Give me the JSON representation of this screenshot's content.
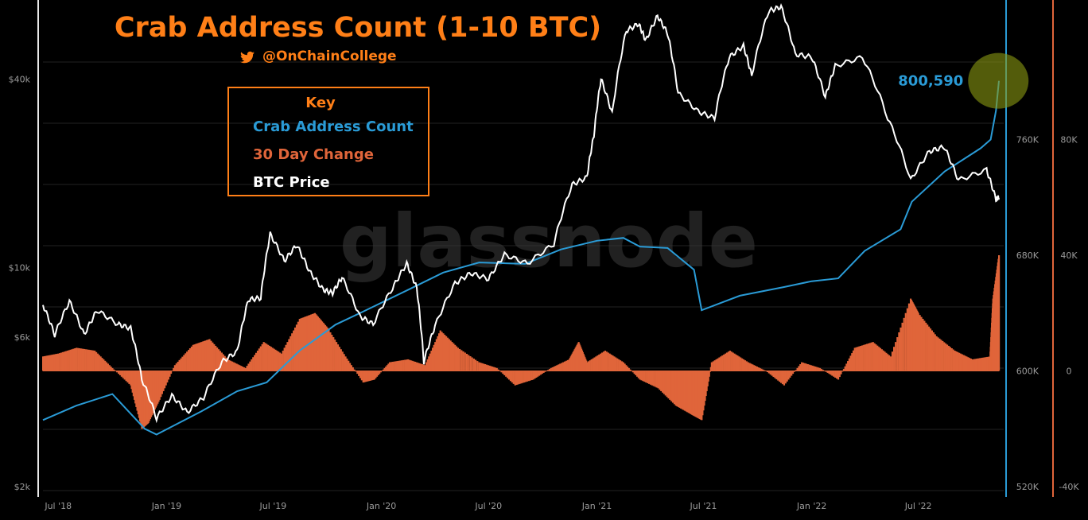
{
  "chart_data": {
    "type": "line",
    "title": "Crab Address Count (1-10 BTC)",
    "source_handle": "@OnChainCollege",
    "watermark": "glassnode",
    "key": {
      "heading": "Key",
      "items": [
        {
          "label": "Crab Address Count",
          "color": "#2a9bd6"
        },
        {
          "label": "30 Day Change",
          "color": "#e0653a"
        },
        {
          "label": "BTC Price",
          "color": "#ffffff"
        }
      ]
    },
    "annotation": {
      "text": "800,590",
      "x": "2022-11-14",
      "y": 800590
    },
    "x_ticks": [
      {
        "label": "Jul '18",
        "x": "2018-07-01"
      },
      {
        "label": "Jan '19",
        "x": "2019-01-01"
      },
      {
        "label": "Jul '19",
        "x": "2019-07-01"
      },
      {
        "label": "Jan '20",
        "x": "2020-01-01"
      },
      {
        "label": "Jul '20",
        "x": "2020-07-01"
      },
      {
        "label": "Jan '21",
        "x": "2021-01-01"
      },
      {
        "label": "Jul '21",
        "x": "2021-07-01"
      },
      {
        "label": "Jan '22",
        "x": "2022-01-01"
      },
      {
        "label": "Jul '22",
        "x": "2022-07-01"
      }
    ],
    "x_range": [
      "2018-06-05",
      "2022-11-15"
    ],
    "axes": {
      "price": {
        "side": "left",
        "scale": "log",
        "range": [
          2000,
          60000
        ],
        "ticks": [
          {
            "label": "$2k",
            "value": 2000
          },
          {
            "label": "$6k",
            "value": 6000
          },
          {
            "label": "$10k",
            "value": 10000
          },
          {
            "label": "$40k",
            "value": 40000
          }
        ]
      },
      "count": {
        "side": "right",
        "range": [
          520000,
          840000
        ],
        "color": "#2a9bd6",
        "ticks": [
          {
            "label": "520K",
            "value": 520000
          },
          {
            "label": "600K",
            "value": 600000
          },
          {
            "label": "680K",
            "value": 680000
          },
          {
            "label": "760K",
            "value": 760000
          }
        ]
      },
      "change": {
        "side": "right-outer",
        "range": [
          -40000,
          120000
        ],
        "color": "#e0653a",
        "ticks": [
          {
            "label": "-40K",
            "value": -40000
          },
          {
            "label": "0",
            "value": 0
          },
          {
            "label": "40K",
            "value": 40000
          },
          {
            "label": "80K",
            "value": 80000
          }
        ]
      }
    },
    "gridlines": true,
    "series": [
      {
        "name": "BTC Price",
        "axis": "price",
        "color": "#ffffff",
        "points": [
          [
            "2018-06-05",
            7600
          ],
          [
            "2018-06-25",
            6100
          ],
          [
            "2018-07-20",
            7800
          ],
          [
            "2018-08-14",
            6100
          ],
          [
            "2018-09-05",
            7300
          ],
          [
            "2018-10-10",
            6600
          ],
          [
            "2018-11-01",
            6400
          ],
          [
            "2018-11-20",
            4400
          ],
          [
            "2018-12-15",
            3300
          ],
          [
            "2019-01-10",
            3900
          ],
          [
            "2019-02-05",
            3450
          ],
          [
            "2019-03-05",
            3850
          ],
          [
            "2019-04-05",
            5000
          ],
          [
            "2019-05-01",
            5400
          ],
          [
            "2019-05-20",
            7900
          ],
          [
            "2019-06-10",
            8000
          ],
          [
            "2019-06-26",
            12800
          ],
          [
            "2019-07-20",
            10500
          ],
          [
            "2019-08-10",
            11800
          ],
          [
            "2019-09-01",
            9700
          ],
          [
            "2019-09-24",
            8500
          ],
          [
            "2019-10-10",
            8300
          ],
          [
            "2019-10-26",
            9300
          ],
          [
            "2019-11-25",
            7000
          ],
          [
            "2019-12-18",
            6600
          ],
          [
            "2020-01-20",
            8600
          ],
          [
            "2020-02-13",
            10300
          ],
          [
            "2020-03-01",
            8600
          ],
          [
            "2020-03-13",
            5000
          ],
          [
            "2020-04-01",
            6500
          ],
          [
            "2020-05-05",
            8900
          ],
          [
            "2020-06-01",
            9600
          ],
          [
            "2020-07-01",
            9200
          ],
          [
            "2020-07-28",
            11000
          ],
          [
            "2020-09-05",
            10300
          ],
          [
            "2020-10-20",
            11900
          ],
          [
            "2020-11-20",
            18400
          ],
          [
            "2020-12-15",
            19400
          ],
          [
            "2020-12-27",
            26500
          ],
          [
            "2021-01-08",
            40000
          ],
          [
            "2021-01-27",
            31000
          ],
          [
            "2021-02-20",
            57000
          ],
          [
            "2021-03-13",
            60000
          ],
          [
            "2021-03-25",
            53000
          ],
          [
            "2021-04-14",
            63500
          ],
          [
            "2021-05-01",
            56000
          ],
          [
            "2021-05-19",
            36000
          ],
          [
            "2021-06-22",
            31500
          ],
          [
            "2021-07-20",
            30000
          ],
          [
            "2021-08-14",
            47000
          ],
          [
            "2021-09-07",
            51000
          ],
          [
            "2021-09-21",
            41000
          ],
          [
            "2021-10-20",
            66000
          ],
          [
            "2021-11-10",
            68000
          ],
          [
            "2021-12-04",
            48000
          ],
          [
            "2022-01-01",
            47000
          ],
          [
            "2022-01-24",
            35000
          ],
          [
            "2022-02-10",
            44000
          ],
          [
            "2022-03-28",
            47000
          ],
          [
            "2022-05-10",
            30000
          ],
          [
            "2022-06-18",
            19000
          ],
          [
            "2022-07-20",
            23500
          ],
          [
            "2022-08-14",
            24300
          ],
          [
            "2022-09-07",
            19000
          ],
          [
            "2022-10-25",
            20500
          ],
          [
            "2022-11-10",
            16500
          ],
          [
            "2022-11-15",
            16800
          ]
        ]
      },
      {
        "name": "Crab Address Count",
        "axis": "count",
        "color": "#2a9bd6",
        "points": [
          [
            "2018-06-05",
            566000
          ],
          [
            "2018-08-01",
            576000
          ],
          [
            "2018-10-01",
            584000
          ],
          [
            "2018-11-25",
            560000
          ],
          [
            "2018-12-15",
            556000
          ],
          [
            "2019-03-01",
            572000
          ],
          [
            "2019-05-01",
            586000
          ],
          [
            "2019-06-20",
            592000
          ],
          [
            "2019-08-15",
            614000
          ],
          [
            "2019-10-15",
            632000
          ],
          [
            "2019-12-01",
            641000
          ],
          [
            "2020-03-01",
            659000
          ],
          [
            "2020-04-15",
            668000
          ],
          [
            "2020-06-15",
            675000
          ],
          [
            "2020-09-01",
            674000
          ],
          [
            "2020-11-01",
            684000
          ],
          [
            "2021-01-01",
            690000
          ],
          [
            "2021-02-15",
            692000
          ],
          [
            "2021-03-15",
            686000
          ],
          [
            "2021-05-01",
            685000
          ],
          [
            "2021-06-15",
            670000
          ],
          [
            "2021-06-28",
            642000
          ],
          [
            "2021-09-01",
            652000
          ],
          [
            "2021-11-15",
            658000
          ],
          [
            "2022-01-01",
            662000
          ],
          [
            "2022-02-15",
            664000
          ],
          [
            "2022-04-01",
            683000
          ],
          [
            "2022-06-01",
            698000
          ],
          [
            "2022-06-20",
            717000
          ],
          [
            "2022-08-15",
            738000
          ],
          [
            "2022-10-15",
            754000
          ],
          [
            "2022-11-01",
            760000
          ],
          [
            "2022-11-10",
            780000
          ],
          [
            "2022-11-15",
            800590
          ]
        ]
      },
      {
        "name": "30 Day Change",
        "axis": "change",
        "color": "#e0653a",
        "points": [
          [
            "2018-06-05",
            5000
          ],
          [
            "2018-07-01",
            6000
          ],
          [
            "2018-08-01",
            8000
          ],
          [
            "2018-09-01",
            7000
          ],
          [
            "2018-10-01",
            1000
          ],
          [
            "2018-11-01",
            -5000
          ],
          [
            "2018-11-20",
            -20000
          ],
          [
            "2018-12-01",
            -18000
          ],
          [
            "2018-12-20",
            -10000
          ],
          [
            "2019-01-15",
            2000
          ],
          [
            "2019-02-15",
            9000
          ],
          [
            "2019-03-15",
            11000
          ],
          [
            "2019-04-15",
            4000
          ],
          [
            "2019-05-15",
            1000
          ],
          [
            "2019-06-15",
            10000
          ],
          [
            "2019-07-15",
            6000
          ],
          [
            "2019-08-15",
            18000
          ],
          [
            "2019-09-10",
            20000
          ],
          [
            "2019-10-01",
            15000
          ],
          [
            "2019-11-01",
            5000
          ],
          [
            "2019-12-01",
            -4000
          ],
          [
            "2019-12-20",
            -3000
          ],
          [
            "2020-01-15",
            3000
          ],
          [
            "2020-02-15",
            4000
          ],
          [
            "2020-03-15",
            2000
          ],
          [
            "2020-04-10",
            14000
          ],
          [
            "2020-05-10",
            8000
          ],
          [
            "2020-06-15",
            3000
          ],
          [
            "2020-07-15",
            1000
          ],
          [
            "2020-08-15",
            -5000
          ],
          [
            "2020-09-15",
            -3000
          ],
          [
            "2020-10-15",
            1000
          ],
          [
            "2020-11-15",
            4000
          ],
          [
            "2020-12-01",
            10000
          ],
          [
            "2020-12-15",
            3000
          ],
          [
            "2021-01-15",
            7000
          ],
          [
            "2021-02-15",
            3000
          ],
          [
            "2021-03-15",
            -3000
          ],
          [
            "2021-04-15",
            -6000
          ],
          [
            "2021-05-15",
            -12000
          ],
          [
            "2021-06-10",
            -15000
          ],
          [
            "2021-06-28",
            -17000
          ],
          [
            "2021-07-15",
            3000
          ],
          [
            "2021-08-15",
            7000
          ],
          [
            "2021-09-15",
            3000
          ],
          [
            "2021-10-15",
            0
          ],
          [
            "2021-11-15",
            -5000
          ],
          [
            "2021-12-15",
            3000
          ],
          [
            "2022-01-15",
            1000
          ],
          [
            "2022-02-15",
            -3000
          ],
          [
            "2022-03-15",
            8000
          ],
          [
            "2022-04-15",
            10000
          ],
          [
            "2022-05-15",
            5000
          ],
          [
            "2022-06-18",
            25000
          ],
          [
            "2022-07-01",
            20000
          ],
          [
            "2022-08-01",
            12000
          ],
          [
            "2022-09-01",
            7000
          ],
          [
            "2022-10-01",
            4000
          ],
          [
            "2022-10-31",
            5000
          ],
          [
            "2022-11-05",
            25000
          ],
          [
            "2022-11-15",
            40000
          ]
        ]
      }
    ]
  }
}
